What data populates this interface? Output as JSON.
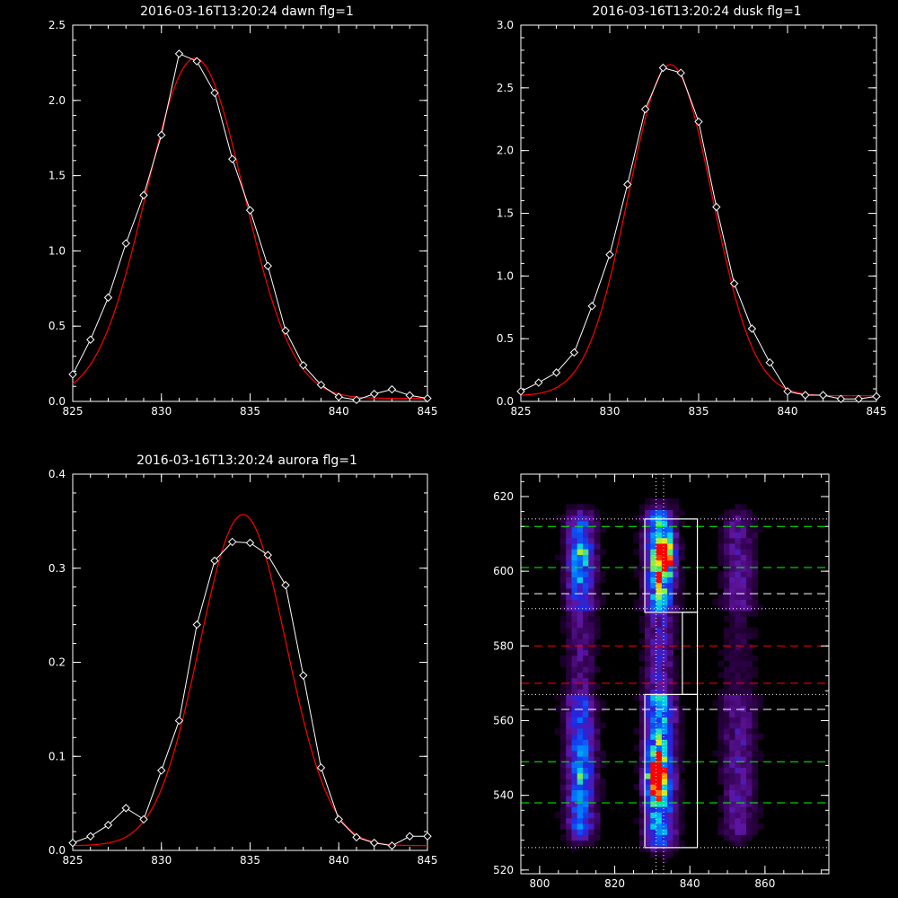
{
  "colors": {
    "background": "#000000",
    "foreground": "#ffffff",
    "measured": "#ffffff",
    "fit": "#ff0000",
    "green_line": "#00ff00",
    "red_line": "#ff0000",
    "white_line": "#ffffff"
  },
  "chart_data": [
    {
      "type": "line",
      "title": "2016-03-16T13:20:24 dawn flg=1",
      "xlim": [
        825,
        845
      ],
      "ylim": [
        0,
        2.5
      ],
      "xticks": [
        "825",
        "830",
        "835",
        "840",
        "845"
      ],
      "yticks": [
        "0.0",
        "0.5",
        "1.0",
        "1.5",
        "2.0",
        "2.5"
      ],
      "series": [
        {
          "role": "measured",
          "marker": "diamond",
          "x": [
            825,
            826,
            827,
            828,
            829,
            830,
            831,
            832,
            833,
            834,
            835,
            836,
            837,
            838,
            839,
            840,
            841,
            842,
            843,
            844,
            845
          ],
          "y": [
            0.18,
            0.41,
            0.69,
            1.05,
            1.37,
            1.77,
            2.31,
            2.26,
            2.05,
            1.61,
            1.27,
            0.9,
            0.47,
            0.24,
            0.11,
            0.03,
            0.01,
            0.05,
            0.08,
            0.04,
            0.02
          ]
        },
        {
          "role": "fit",
          "model": "gaussian",
          "peak": 2.26,
          "center": 831.9,
          "sigma": 2.75,
          "offset": 0.02
        }
      ]
    },
    {
      "type": "line",
      "title": "2016-03-16T13:20:24 dusk flg=1",
      "xlim": [
        825,
        845
      ],
      "ylim": [
        0,
        3.0
      ],
      "xticks": [
        "825",
        "830",
        "835",
        "840",
        "845"
      ],
      "yticks": [
        "0.0",
        "0.5",
        "1.0",
        "1.5",
        "2.0",
        "2.5",
        "3.0"
      ],
      "series": [
        {
          "role": "measured",
          "marker": "diamond",
          "x": [
            825,
            826,
            827,
            828,
            829,
            830,
            831,
            832,
            833,
            834,
            835,
            836,
            837,
            838,
            839,
            840,
            841,
            842,
            843,
            844,
            845
          ],
          "y": [
            0.08,
            0.15,
            0.23,
            0.39,
            0.76,
            1.17,
            1.73,
            2.33,
            2.66,
            2.62,
            2.23,
            1.55,
            0.94,
            0.58,
            0.31,
            0.08,
            0.05,
            0.05,
            0.02,
            0.02,
            0.04
          ]
        },
        {
          "role": "fit",
          "model": "gaussian",
          "peak": 2.64,
          "center": 833.4,
          "sigma": 2.35,
          "offset": 0.045
        }
      ]
    },
    {
      "type": "line",
      "title": "2016-03-16T13:20:24 aurora flg=1",
      "xlim": [
        825,
        845
      ],
      "ylim": [
        0,
        0.4
      ],
      "xticks": [
        "825",
        "830",
        "835",
        "840",
        "845"
      ],
      "yticks": [
        "0.0",
        "0.1",
        "0.2",
        "0.3",
        "0.4"
      ],
      "series": [
        {
          "role": "measured",
          "marker": "diamond",
          "x": [
            825,
            826,
            827,
            828,
            829,
            830,
            831,
            832,
            833,
            834,
            835,
            836,
            837,
            838,
            839,
            840,
            841,
            842,
            843,
            844,
            845
          ],
          "y": [
            0.008,
            0.015,
            0.027,
            0.045,
            0.033,
            0.085,
            0.138,
            0.24,
            0.308,
            0.328,
            0.327,
            0.314,
            0.282,
            0.186,
            0.088,
            0.033,
            0.014,
            0.008,
            0.005,
            0.015,
            0.015
          ]
        },
        {
          "role": "fit",
          "model": "gaussian",
          "peak": 0.352,
          "center": 834.6,
          "sigma": 2.45,
          "offset": 0.005
        }
      ]
    },
    {
      "type": "heatmap",
      "xlim": [
        795,
        877
      ],
      "ylim": [
        519,
        626
      ],
      "xticks": [
        "800",
        "820",
        "840",
        "860"
      ],
      "yticks": [
        "520",
        "540",
        "560",
        "580",
        "600",
        "620"
      ],
      "bands": [
        {
          "x_center": 811,
          "x_sigma": 2.6,
          "y_range": [
            532,
            612
          ],
          "amplitude": 0.42
        },
        {
          "x_center": 832,
          "x_sigma": 2.6,
          "y_range": [
            530,
            613
          ],
          "amplitude": 0.6
        },
        {
          "x_center": 853,
          "x_sigma": 3.0,
          "y_range": [
            532,
            612
          ],
          "amplitude": 0.22
        }
      ],
      "hotspots": [
        {
          "x": 833,
          "y": 604,
          "amplitude": 0.85
        },
        {
          "x": 831,
          "y": 545,
          "amplitude": 0.75
        },
        {
          "x": 811,
          "y": 604,
          "amplitude": 0.28
        },
        {
          "x": 811,
          "y": 545,
          "amplitude": 0.25
        }
      ],
      "boxes": [
        {
          "x": [
            828,
            842
          ],
          "y": [
            589,
            614
          ]
        },
        {
          "x": [
            828,
            842
          ],
          "y": [
            526,
            567
          ]
        },
        {
          "x": [
            838,
            842
          ],
          "y": [
            567,
            589
          ]
        }
      ],
      "vlines_dotted": [
        831,
        833
      ],
      "hlines": [
        {
          "y": 612,
          "style": "dashed",
          "color": "green"
        },
        {
          "y": 601,
          "style": "dashed",
          "color": "green"
        },
        {
          "y": 594,
          "style": "dashed",
          "color": "white"
        },
        {
          "y": 580,
          "style": "dashed",
          "color": "red"
        },
        {
          "y": 570,
          "style": "dashed",
          "color": "red"
        },
        {
          "y": 563,
          "style": "dashed",
          "color": "white"
        },
        {
          "y": 549,
          "style": "dashed",
          "color": "green"
        },
        {
          "y": 538,
          "style": "dashed",
          "color": "green"
        },
        {
          "y": 614,
          "style": "dotted",
          "color": "white"
        },
        {
          "y": 590,
          "style": "dotted",
          "color": "white"
        },
        {
          "y": 567,
          "style": "dotted",
          "color": "white"
        },
        {
          "y": 526,
          "style": "dotted",
          "color": "white"
        }
      ]
    }
  ]
}
